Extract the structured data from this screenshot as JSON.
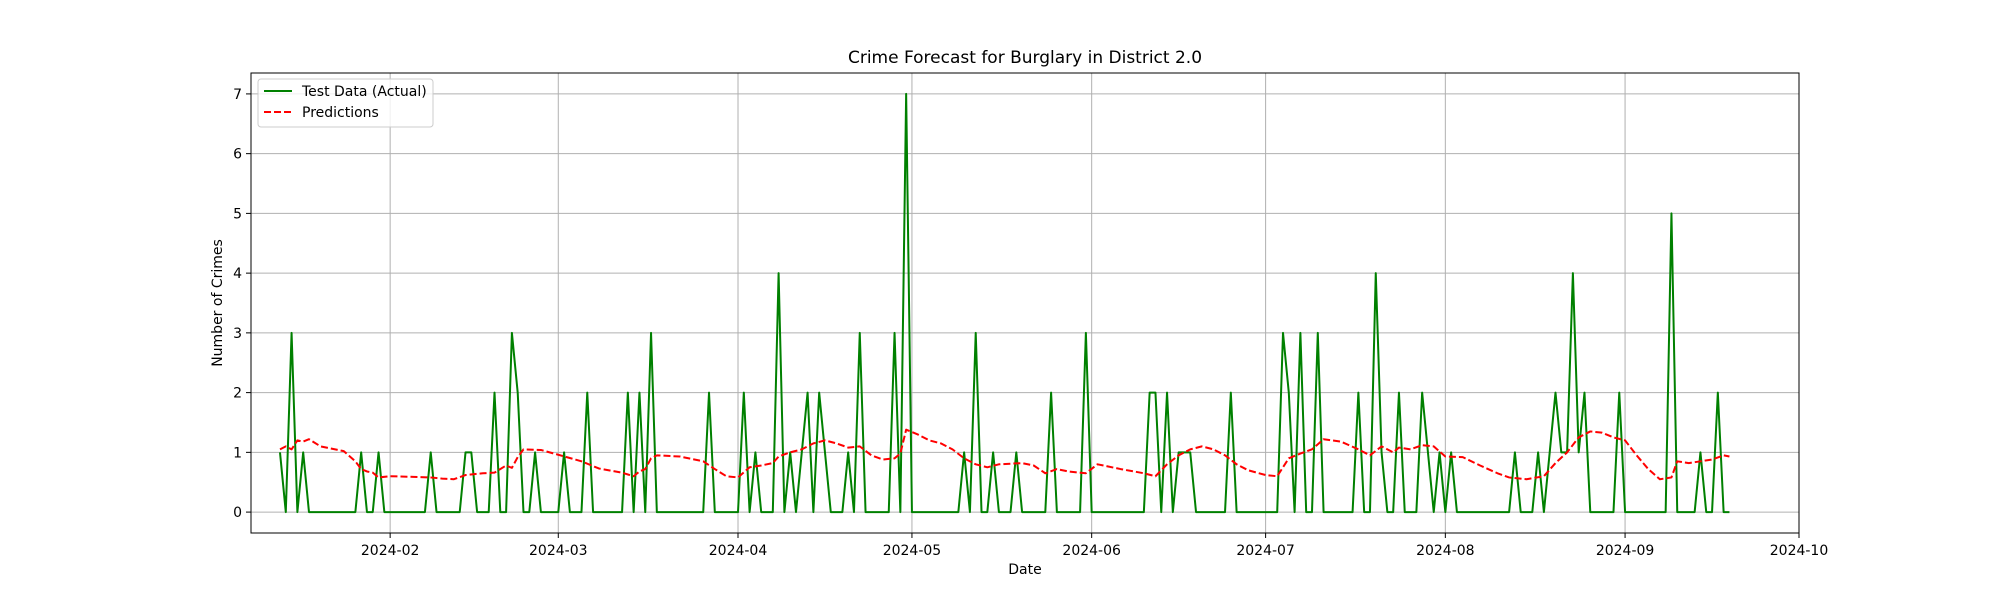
{
  "chart_data": {
    "type": "line",
    "title": "Crime Forecast for Burglary in District 2.0",
    "xlabel": "Date",
    "ylabel": "Number of Crimes",
    "xlim": [
      "2024-01-08",
      "2024-10-01"
    ],
    "ylim": [
      -0.35,
      7.35
    ],
    "grid": true,
    "legend_position": "top-left",
    "x_ticks": [
      "2024-02",
      "2024-03",
      "2024-04",
      "2024-05",
      "2024-06",
      "2024-07",
      "2024-08",
      "2024-09",
      "2024-10"
    ],
    "y_ticks": [
      0,
      1,
      2,
      3,
      4,
      5,
      6,
      7
    ],
    "series": [
      {
        "name": "Test Data (Actual)",
        "color": "#008000",
        "style": "solid",
        "points": [
          [
            "2024-01-13",
            1
          ],
          [
            "2024-01-14",
            0
          ],
          [
            "2024-01-15",
            3
          ],
          [
            "2024-01-16",
            0
          ],
          [
            "2024-01-17",
            1
          ],
          [
            "2024-01-18",
            0
          ],
          [
            "2024-01-26",
            0
          ],
          [
            "2024-01-27",
            1
          ],
          [
            "2024-01-28",
            0
          ],
          [
            "2024-01-29",
            0
          ],
          [
            "2024-01-30",
            1
          ],
          [
            "2024-01-31",
            0
          ],
          [
            "2024-02-07",
            0
          ],
          [
            "2024-02-08",
            1
          ],
          [
            "2024-02-09",
            0
          ],
          [
            "2024-02-13",
            0
          ],
          [
            "2024-02-14",
            1
          ],
          [
            "2024-02-15",
            1
          ],
          [
            "2024-02-16",
            0
          ],
          [
            "2024-02-18",
            0
          ],
          [
            "2024-02-19",
            2
          ],
          [
            "2024-02-20",
            0
          ],
          [
            "2024-02-21",
            0
          ],
          [
            "2024-02-22",
            3
          ],
          [
            "2024-02-23",
            2
          ],
          [
            "2024-02-24",
            0
          ],
          [
            "2024-02-25",
            0
          ],
          [
            "2024-02-26",
            1
          ],
          [
            "2024-02-27",
            0
          ],
          [
            "2024-03-01",
            0
          ],
          [
            "2024-03-02",
            1
          ],
          [
            "2024-03-03",
            0
          ],
          [
            "2024-03-05",
            0
          ],
          [
            "2024-03-06",
            2
          ],
          [
            "2024-03-07",
            0
          ],
          [
            "2024-03-12",
            0
          ],
          [
            "2024-03-13",
            2
          ],
          [
            "2024-03-14",
            0
          ],
          [
            "2024-03-15",
            2
          ],
          [
            "2024-03-16",
            0
          ],
          [
            "2024-03-17",
            3
          ],
          [
            "2024-03-18",
            0
          ],
          [
            "2024-03-26",
            0
          ],
          [
            "2024-03-27",
            2
          ],
          [
            "2024-03-28",
            0
          ],
          [
            "2024-04-01",
            0
          ],
          [
            "2024-04-02",
            2
          ],
          [
            "2024-04-03",
            0
          ],
          [
            "2024-04-04",
            1
          ],
          [
            "2024-04-05",
            0
          ],
          [
            "2024-04-07",
            0
          ],
          [
            "2024-04-08",
            4
          ],
          [
            "2024-04-09",
            0
          ],
          [
            "2024-04-10",
            1
          ],
          [
            "2024-04-11",
            0
          ],
          [
            "2024-04-13",
            2
          ],
          [
            "2024-04-14",
            0
          ],
          [
            "2024-04-15",
            2
          ],
          [
            "2024-04-16",
            1
          ],
          [
            "2024-04-17",
            0
          ],
          [
            "2024-04-19",
            0
          ],
          [
            "2024-04-20",
            1
          ],
          [
            "2024-04-21",
            0
          ],
          [
            "2024-04-22",
            3
          ],
          [
            "2024-04-23",
            0
          ],
          [
            "2024-04-27",
            0
          ],
          [
            "2024-04-28",
            3
          ],
          [
            "2024-04-29",
            0
          ],
          [
            "2024-04-30",
            7
          ],
          [
            "2024-05-01",
            0
          ],
          [
            "2024-05-09",
            0
          ],
          [
            "2024-05-10",
            1
          ],
          [
            "2024-05-11",
            0
          ],
          [
            "2024-05-12",
            3
          ],
          [
            "2024-05-13",
            0
          ],
          [
            "2024-05-14",
            0
          ],
          [
            "2024-05-15",
            1
          ],
          [
            "2024-05-16",
            0
          ],
          [
            "2024-05-18",
            0
          ],
          [
            "2024-05-19",
            1
          ],
          [
            "2024-05-20",
            0
          ],
          [
            "2024-05-24",
            0
          ],
          [
            "2024-05-25",
            2
          ],
          [
            "2024-05-26",
            0
          ],
          [
            "2024-05-30",
            0
          ],
          [
            "2024-05-31",
            3
          ],
          [
            "2024-06-01",
            0
          ],
          [
            "2024-06-10",
            0
          ],
          [
            "2024-06-11",
            2
          ],
          [
            "2024-06-12",
            2
          ],
          [
            "2024-06-13",
            0
          ],
          [
            "2024-06-14",
            2
          ],
          [
            "2024-06-15",
            0
          ],
          [
            "2024-06-16",
            1
          ],
          [
            "2024-06-17",
            1
          ],
          [
            "2024-06-18",
            1
          ],
          [
            "2024-06-19",
            0
          ],
          [
            "2024-06-24",
            0
          ],
          [
            "2024-06-25",
            2
          ],
          [
            "2024-06-26",
            0
          ],
          [
            "2024-07-03",
            0
          ],
          [
            "2024-07-04",
            3
          ],
          [
            "2024-07-05",
            2
          ],
          [
            "2024-07-06",
            0
          ],
          [
            "2024-07-07",
            3
          ],
          [
            "2024-07-08",
            0
          ],
          [
            "2024-07-09",
            0
          ],
          [
            "2024-07-10",
            3
          ],
          [
            "2024-07-11",
            0
          ],
          [
            "2024-07-16",
            0
          ],
          [
            "2024-07-17",
            2
          ],
          [
            "2024-07-18",
            0
          ],
          [
            "2024-07-19",
            0
          ],
          [
            "2024-07-20",
            4
          ],
          [
            "2024-07-21",
            1
          ],
          [
            "2024-07-22",
            0
          ],
          [
            "2024-07-23",
            0
          ],
          [
            "2024-07-24",
            2
          ],
          [
            "2024-07-25",
            0
          ],
          [
            "2024-07-27",
            0
          ],
          [
            "2024-07-28",
            2
          ],
          [
            "2024-07-29",
            1
          ],
          [
            "2024-07-30",
            0
          ],
          [
            "2024-07-31",
            1
          ],
          [
            "2024-08-01",
            0
          ],
          [
            "2024-08-02",
            1
          ],
          [
            "2024-08-03",
            0
          ],
          [
            "2024-08-12",
            0
          ],
          [
            "2024-08-13",
            1
          ],
          [
            "2024-08-14",
            0
          ],
          [
            "2024-08-16",
            0
          ],
          [
            "2024-08-17",
            1
          ],
          [
            "2024-08-18",
            0
          ],
          [
            "2024-08-19",
            1
          ],
          [
            "2024-08-20",
            2
          ],
          [
            "2024-08-21",
            1
          ],
          [
            "2024-08-22",
            1
          ],
          [
            "2024-08-23",
            4
          ],
          [
            "2024-08-24",
            1
          ],
          [
            "2024-08-25",
            2
          ],
          [
            "2024-08-26",
            0
          ],
          [
            "2024-08-30",
            0
          ],
          [
            "2024-08-31",
            2
          ],
          [
            "2024-09-01",
            0
          ],
          [
            "2024-09-08",
            0
          ],
          [
            "2024-09-09",
            5
          ],
          [
            "2024-09-10",
            0
          ],
          [
            "2024-09-13",
            0
          ],
          [
            "2024-09-14",
            1
          ],
          [
            "2024-09-15",
            0
          ],
          [
            "2024-09-16",
            0
          ],
          [
            "2024-09-17",
            2
          ],
          [
            "2024-09-18",
            0
          ],
          [
            "2024-09-19",
            0
          ]
        ]
      },
      {
        "name": "Predictions",
        "color": "#ff0000",
        "style": "dashed",
        "points": [
          [
            "2024-01-13",
            1.05
          ],
          [
            "2024-01-14",
            1.1
          ],
          [
            "2024-01-15",
            1.05
          ],
          [
            "2024-01-16",
            1.2
          ],
          [
            "2024-01-17",
            1.18
          ],
          [
            "2024-01-18",
            1.22
          ],
          [
            "2024-01-20",
            1.1
          ],
          [
            "2024-01-24",
            1.02
          ],
          [
            "2024-01-26",
            0.85
          ],
          [
            "2024-01-27",
            0.72
          ],
          [
            "2024-01-28",
            0.68
          ],
          [
            "2024-01-29",
            0.66
          ],
          [
            "2024-01-30",
            0.58
          ],
          [
            "2024-02-01",
            0.6
          ],
          [
            "2024-02-05",
            0.59
          ],
          [
            "2024-02-08",
            0.58
          ],
          [
            "2024-02-10",
            0.56
          ],
          [
            "2024-02-12",
            0.55
          ],
          [
            "2024-02-14",
            0.62
          ],
          [
            "2024-02-17",
            0.65
          ],
          [
            "2024-02-19",
            0.66
          ],
          [
            "2024-02-21",
            0.78
          ],
          [
            "2024-02-22",
            0.74
          ],
          [
            "2024-02-23",
            0.92
          ],
          [
            "2024-02-24",
            1.05
          ],
          [
            "2024-02-27",
            1.04
          ],
          [
            "2024-03-01",
            0.96
          ],
          [
            "2024-03-05",
            0.85
          ],
          [
            "2024-03-08",
            0.73
          ],
          [
            "2024-03-12",
            0.66
          ],
          [
            "2024-03-14",
            0.6
          ],
          [
            "2024-03-15",
            0.68
          ],
          [
            "2024-03-16",
            0.72
          ],
          [
            "2024-03-17",
            0.9
          ],
          [
            "2024-03-18",
            0.95
          ],
          [
            "2024-03-22",
            0.93
          ],
          [
            "2024-03-26",
            0.85
          ],
          [
            "2024-03-28",
            0.72
          ],
          [
            "2024-03-30",
            0.6
          ],
          [
            "2024-04-01",
            0.58
          ],
          [
            "2024-04-03",
            0.75
          ],
          [
            "2024-04-05",
            0.78
          ],
          [
            "2024-04-07",
            0.82
          ],
          [
            "2024-04-08",
            0.93
          ],
          [
            "2024-04-10",
            1.0
          ],
          [
            "2024-04-12",
            1.05
          ],
          [
            "2024-04-14",
            1.15
          ],
          [
            "2024-04-16",
            1.2
          ],
          [
            "2024-04-18",
            1.15
          ],
          [
            "2024-04-20",
            1.08
          ],
          [
            "2024-04-22",
            1.1
          ],
          [
            "2024-04-24",
            0.95
          ],
          [
            "2024-04-26",
            0.88
          ],
          [
            "2024-04-28",
            0.9
          ],
          [
            "2024-04-29",
            0.98
          ],
          [
            "2024-04-30",
            1.38
          ],
          [
            "2024-05-02",
            1.3
          ],
          [
            "2024-05-04",
            1.2
          ],
          [
            "2024-05-06",
            1.15
          ],
          [
            "2024-05-08",
            1.05
          ],
          [
            "2024-05-10",
            0.9
          ],
          [
            "2024-05-12",
            0.8
          ],
          [
            "2024-05-14",
            0.75
          ],
          [
            "2024-05-16",
            0.8
          ],
          [
            "2024-05-20",
            0.82
          ],
          [
            "2024-05-22",
            0.78
          ],
          [
            "2024-05-24",
            0.65
          ],
          [
            "2024-05-26",
            0.72
          ],
          [
            "2024-05-28",
            0.68
          ],
          [
            "2024-05-31",
            0.65
          ],
          [
            "2024-06-02",
            0.8
          ],
          [
            "2024-06-06",
            0.72
          ],
          [
            "2024-06-10",
            0.65
          ],
          [
            "2024-06-12",
            0.6
          ],
          [
            "2024-06-14",
            0.8
          ],
          [
            "2024-06-16",
            0.95
          ],
          [
            "2024-06-18",
            1.05
          ],
          [
            "2024-06-20",
            1.1
          ],
          [
            "2024-06-22",
            1.05
          ],
          [
            "2024-06-24",
            0.95
          ],
          [
            "2024-06-26",
            0.8
          ],
          [
            "2024-06-28",
            0.7
          ],
          [
            "2024-07-01",
            0.62
          ],
          [
            "2024-07-03",
            0.6
          ],
          [
            "2024-07-05",
            0.9
          ],
          [
            "2024-07-07",
            0.98
          ],
          [
            "2024-07-09",
            1.05
          ],
          [
            "2024-07-11",
            1.22
          ],
          [
            "2024-07-14",
            1.18
          ],
          [
            "2024-07-17",
            1.05
          ],
          [
            "2024-07-19",
            0.95
          ],
          [
            "2024-07-21",
            1.1
          ],
          [
            "2024-07-23",
            1.0
          ],
          [
            "2024-07-24",
            1.08
          ],
          [
            "2024-07-26",
            1.05
          ],
          [
            "2024-07-28",
            1.12
          ],
          [
            "2024-07-30",
            1.1
          ],
          [
            "2024-08-01",
            0.93
          ],
          [
            "2024-08-04",
            0.92
          ],
          [
            "2024-08-07",
            0.78
          ],
          [
            "2024-08-10",
            0.65
          ],
          [
            "2024-08-12",
            0.58
          ],
          [
            "2024-08-15",
            0.55
          ],
          [
            "2024-08-18",
            0.6
          ],
          [
            "2024-08-20",
            0.82
          ],
          [
            "2024-08-22",
            1.0
          ],
          [
            "2024-08-24",
            1.25
          ],
          [
            "2024-08-26",
            1.35
          ],
          [
            "2024-08-28",
            1.33
          ],
          [
            "2024-08-30",
            1.25
          ],
          [
            "2024-09-01",
            1.2
          ],
          [
            "2024-09-03",
            0.95
          ],
          [
            "2024-09-05",
            0.72
          ],
          [
            "2024-09-07",
            0.55
          ],
          [
            "2024-09-09",
            0.58
          ],
          [
            "2024-09-10",
            0.85
          ],
          [
            "2024-09-12",
            0.82
          ],
          [
            "2024-09-14",
            0.85
          ],
          [
            "2024-09-16",
            0.88
          ],
          [
            "2024-09-18",
            0.95
          ],
          [
            "2024-09-19",
            0.93
          ]
        ]
      }
    ]
  }
}
